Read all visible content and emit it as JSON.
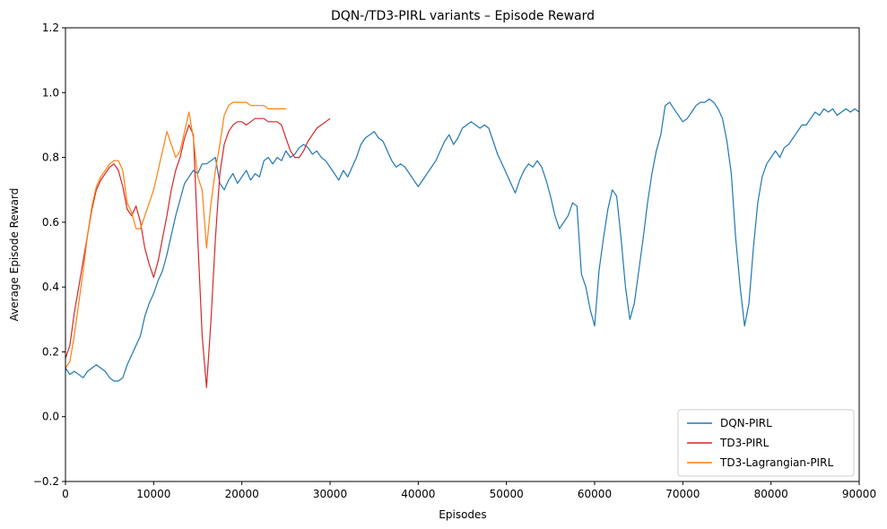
{
  "chart_data": {
    "type": "line",
    "title": "DQN-/TD3-PIRL variants – Episode Reward",
    "xlabel": "Episodes",
    "ylabel": "Average Episode Reward",
    "xlim": [
      0,
      90000
    ],
    "ylim": [
      -0.2,
      1.2
    ],
    "xticks": [
      0,
      10000,
      20000,
      30000,
      40000,
      50000,
      60000,
      70000,
      80000,
      90000
    ],
    "xtick_labels": [
      "0",
      "10000",
      "20000",
      "30000",
      "40000",
      "50000",
      "60000",
      "70000",
      "80000",
      "90000"
    ],
    "yticks": [
      -0.2,
      0.0,
      0.2,
      0.4,
      0.6,
      0.8,
      1.0,
      1.2
    ],
    "ytick_labels": [
      "−0.2",
      "0.0",
      "0.2",
      "0.4",
      "0.6",
      "0.8",
      "1.0",
      "1.2"
    ],
    "grid": false,
    "legend_position": "bottom-right",
    "series": [
      {
        "name": "DQN-PIRL",
        "color": "#1f77b4",
        "points": [
          [
            0,
            0.15
          ],
          [
            500,
            0.13
          ],
          [
            1000,
            0.14
          ],
          [
            1500,
            0.13
          ],
          [
            2000,
            0.12
          ],
          [
            2500,
            0.14
          ],
          [
            3000,
            0.15
          ],
          [
            3500,
            0.16
          ],
          [
            4000,
            0.15
          ],
          [
            4500,
            0.14
          ],
          [
            5000,
            0.12
          ],
          [
            5500,
            0.11
          ],
          [
            6000,
            0.11
          ],
          [
            6500,
            0.12
          ],
          [
            7000,
            0.16
          ],
          [
            7500,
            0.19
          ],
          [
            8000,
            0.22
          ],
          [
            8500,
            0.25
          ],
          [
            9000,
            0.31
          ],
          [
            9500,
            0.35
          ],
          [
            10000,
            0.38
          ],
          [
            10500,
            0.42
          ],
          [
            11000,
            0.45
          ],
          [
            11500,
            0.5
          ],
          [
            12000,
            0.56
          ],
          [
            12500,
            0.62
          ],
          [
            13000,
            0.67
          ],
          [
            13500,
            0.72
          ],
          [
            14000,
            0.74
          ],
          [
            14500,
            0.76
          ],
          [
            15000,
            0.75
          ],
          [
            15500,
            0.78
          ],
          [
            16000,
            0.78
          ],
          [
            16500,
            0.79
          ],
          [
            17000,
            0.8
          ],
          [
            17500,
            0.72
          ],
          [
            18000,
            0.7
          ],
          [
            18500,
            0.73
          ],
          [
            19000,
            0.75
          ],
          [
            19500,
            0.72
          ],
          [
            20000,
            0.74
          ],
          [
            20500,
            0.76
          ],
          [
            21000,
            0.73
          ],
          [
            21500,
            0.75
          ],
          [
            22000,
            0.74
          ],
          [
            22500,
            0.79
          ],
          [
            23000,
            0.8
          ],
          [
            23500,
            0.78
          ],
          [
            24000,
            0.8
          ],
          [
            24500,
            0.79
          ],
          [
            25000,
            0.82
          ],
          [
            25500,
            0.8
          ],
          [
            26000,
            0.81
          ],
          [
            26500,
            0.83
          ],
          [
            27000,
            0.84
          ],
          [
            27500,
            0.83
          ],
          [
            28000,
            0.81
          ],
          [
            28500,
            0.82
          ],
          [
            29000,
            0.8
          ],
          [
            29500,
            0.79
          ],
          [
            30000,
            0.77
          ],
          [
            30500,
            0.75
          ],
          [
            31000,
            0.73
          ],
          [
            31500,
            0.76
          ],
          [
            32000,
            0.74
          ],
          [
            32500,
            0.77
          ],
          [
            33000,
            0.8
          ],
          [
            33500,
            0.84
          ],
          [
            34000,
            0.86
          ],
          [
            34500,
            0.87
          ],
          [
            35000,
            0.88
          ],
          [
            35500,
            0.86
          ],
          [
            36000,
            0.85
          ],
          [
            36500,
            0.82
          ],
          [
            37000,
            0.79
          ],
          [
            37500,
            0.77
          ],
          [
            38000,
            0.78
          ],
          [
            38500,
            0.77
          ],
          [
            39000,
            0.75
          ],
          [
            39500,
            0.73
          ],
          [
            40000,
            0.71
          ],
          [
            40500,
            0.73
          ],
          [
            41000,
            0.75
          ],
          [
            41500,
            0.77
          ],
          [
            42000,
            0.79
          ],
          [
            42500,
            0.82
          ],
          [
            43000,
            0.85
          ],
          [
            43500,
            0.87
          ],
          [
            44000,
            0.84
          ],
          [
            44500,
            0.86
          ],
          [
            45000,
            0.89
          ],
          [
            45500,
            0.9
          ],
          [
            46000,
            0.91
          ],
          [
            46500,
            0.9
          ],
          [
            47000,
            0.89
          ],
          [
            47500,
            0.9
          ],
          [
            48000,
            0.89
          ],
          [
            48500,
            0.85
          ],
          [
            49000,
            0.81
          ],
          [
            49500,
            0.78
          ],
          [
            50000,
            0.75
          ],
          [
            50500,
            0.72
          ],
          [
            51000,
            0.69
          ],
          [
            51500,
            0.73
          ],
          [
            52000,
            0.76
          ],
          [
            52500,
            0.78
          ],
          [
            53000,
            0.77
          ],
          [
            53500,
            0.79
          ],
          [
            54000,
            0.77
          ],
          [
            54500,
            0.73
          ],
          [
            55000,
            0.68
          ],
          [
            55500,
            0.62
          ],
          [
            56000,
            0.58
          ],
          [
            56500,
            0.6
          ],
          [
            57000,
            0.62
          ],
          [
            57500,
            0.66
          ],
          [
            58000,
            0.65
          ],
          [
            58500,
            0.44
          ],
          [
            59000,
            0.4
          ],
          [
            59500,
            0.33
          ],
          [
            60000,
            0.28
          ],
          [
            60500,
            0.45
          ],
          [
            61000,
            0.55
          ],
          [
            61500,
            0.64
          ],
          [
            62000,
            0.7
          ],
          [
            62500,
            0.68
          ],
          [
            63000,
            0.55
          ],
          [
            63500,
            0.4
          ],
          [
            64000,
            0.3
          ],
          [
            64500,
            0.35
          ],
          [
            65000,
            0.45
          ],
          [
            65500,
            0.55
          ],
          [
            66000,
            0.66
          ],
          [
            66500,
            0.75
          ],
          [
            67000,
            0.82
          ],
          [
            67500,
            0.87
          ],
          [
            68000,
            0.96
          ],
          [
            68500,
            0.97
          ],
          [
            69000,
            0.95
          ],
          [
            69500,
            0.93
          ],
          [
            70000,
            0.91
          ],
          [
            70500,
            0.92
          ],
          [
            71000,
            0.94
          ],
          [
            71500,
            0.96
          ],
          [
            72000,
            0.97
          ],
          [
            72500,
            0.97
          ],
          [
            73000,
            0.98
          ],
          [
            73500,
            0.97
          ],
          [
            74000,
            0.95
          ],
          [
            74500,
            0.92
          ],
          [
            75000,
            0.85
          ],
          [
            75500,
            0.75
          ],
          [
            76000,
            0.55
          ],
          [
            76500,
            0.4
          ],
          [
            77000,
            0.28
          ],
          [
            77500,
            0.35
          ],
          [
            78000,
            0.52
          ],
          [
            78500,
            0.66
          ],
          [
            79000,
            0.74
          ],
          [
            79500,
            0.78
          ],
          [
            80000,
            0.8
          ],
          [
            80500,
            0.82
          ],
          [
            81000,
            0.8
          ],
          [
            81500,
            0.83
          ],
          [
            82000,
            0.84
          ],
          [
            82500,
            0.86
          ],
          [
            83000,
            0.88
          ],
          [
            83500,
            0.9
          ],
          [
            84000,
            0.9
          ],
          [
            84500,
            0.92
          ],
          [
            85000,
            0.94
          ],
          [
            85500,
            0.93
          ],
          [
            86000,
            0.95
          ],
          [
            86500,
            0.94
          ],
          [
            87000,
            0.95
          ],
          [
            87500,
            0.93
          ],
          [
            88000,
            0.94
          ],
          [
            88500,
            0.95
          ],
          [
            89000,
            0.94
          ],
          [
            89500,
            0.95
          ],
          [
            90000,
            0.94
          ]
        ]
      },
      {
        "name": "TD3-PIRL",
        "color": "#d62728",
        "points": [
          [
            0,
            0.18
          ],
          [
            500,
            0.22
          ],
          [
            1000,
            0.32
          ],
          [
            1500,
            0.4
          ],
          [
            2000,
            0.48
          ],
          [
            2500,
            0.56
          ],
          [
            3000,
            0.64
          ],
          [
            3500,
            0.7
          ],
          [
            4000,
            0.73
          ],
          [
            4500,
            0.75
          ],
          [
            5000,
            0.77
          ],
          [
            5500,
            0.78
          ],
          [
            6000,
            0.76
          ],
          [
            6500,
            0.71
          ],
          [
            7000,
            0.64
          ],
          [
            7500,
            0.62
          ],
          [
            8000,
            0.65
          ],
          [
            8500,
            0.6
          ],
          [
            9000,
            0.52
          ],
          [
            9500,
            0.47
          ],
          [
            10000,
            0.43
          ],
          [
            10500,
            0.48
          ],
          [
            11000,
            0.55
          ],
          [
            11500,
            0.62
          ],
          [
            12000,
            0.7
          ],
          [
            12500,
            0.76
          ],
          [
            13000,
            0.8
          ],
          [
            13500,
            0.86
          ],
          [
            14000,
            0.9
          ],
          [
            14500,
            0.87
          ],
          [
            15000,
            0.55
          ],
          [
            15500,
            0.25
          ],
          [
            16000,
            0.09
          ],
          [
            16500,
            0.3
          ],
          [
            17000,
            0.55
          ],
          [
            17500,
            0.75
          ],
          [
            18000,
            0.84
          ],
          [
            18500,
            0.88
          ],
          [
            19000,
            0.9
          ],
          [
            19500,
            0.91
          ],
          [
            20000,
            0.91
          ],
          [
            20500,
            0.9
          ],
          [
            21000,
            0.91
          ],
          [
            21500,
            0.92
          ],
          [
            22000,
            0.92
          ],
          [
            22500,
            0.92
          ],
          [
            23000,
            0.91
          ],
          [
            23500,
            0.91
          ],
          [
            24000,
            0.91
          ],
          [
            24500,
            0.9
          ],
          [
            25000,
            0.86
          ],
          [
            25500,
            0.82
          ],
          [
            26000,
            0.8
          ],
          [
            26500,
            0.8
          ],
          [
            27000,
            0.82
          ],
          [
            27500,
            0.85
          ],
          [
            28000,
            0.87
          ],
          [
            28500,
            0.89
          ],
          [
            29000,
            0.9
          ],
          [
            29500,
            0.91
          ],
          [
            30000,
            0.92
          ]
        ]
      },
      {
        "name": "TD3-Lagrangian-PIRL",
        "color": "#ff7f0e",
        "points": [
          [
            0,
            0.15
          ],
          [
            500,
            0.17
          ],
          [
            1000,
            0.25
          ],
          [
            1500,
            0.35
          ],
          [
            2000,
            0.45
          ],
          [
            2500,
            0.56
          ],
          [
            3000,
            0.65
          ],
          [
            3500,
            0.71
          ],
          [
            4000,
            0.74
          ],
          [
            4500,
            0.76
          ],
          [
            5000,
            0.78
          ],
          [
            5500,
            0.79
          ],
          [
            6000,
            0.79
          ],
          [
            6500,
            0.76
          ],
          [
            7000,
            0.66
          ],
          [
            7500,
            0.63
          ],
          [
            8000,
            0.58
          ],
          [
            8500,
            0.58
          ],
          [
            9000,
            0.62
          ],
          [
            9500,
            0.66
          ],
          [
            10000,
            0.7
          ],
          [
            10500,
            0.76
          ],
          [
            11000,
            0.82
          ],
          [
            11500,
            0.88
          ],
          [
            12000,
            0.84
          ],
          [
            12500,
            0.8
          ],
          [
            13000,
            0.82
          ],
          [
            13500,
            0.88
          ],
          [
            14000,
            0.94
          ],
          [
            14500,
            0.86
          ],
          [
            15000,
            0.74
          ],
          [
            15500,
            0.7
          ],
          [
            16000,
            0.52
          ],
          [
            16500,
            0.66
          ],
          [
            17000,
            0.76
          ],
          [
            17500,
            0.84
          ],
          [
            18000,
            0.93
          ],
          [
            18500,
            0.96
          ],
          [
            19000,
            0.97
          ],
          [
            19500,
            0.97
          ],
          [
            20000,
            0.97
          ],
          [
            20500,
            0.97
          ],
          [
            21000,
            0.96
          ],
          [
            21500,
            0.96
          ],
          [
            22000,
            0.96
          ],
          [
            22500,
            0.96
          ],
          [
            23000,
            0.95
          ],
          [
            23500,
            0.95
          ],
          [
            24000,
            0.95
          ],
          [
            24500,
            0.95
          ],
          [
            25000,
            0.95
          ]
        ]
      }
    ]
  }
}
